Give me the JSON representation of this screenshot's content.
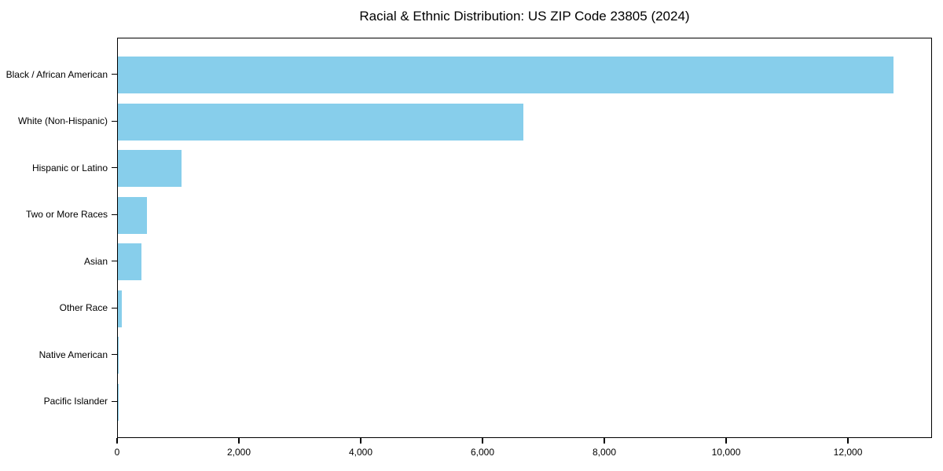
{
  "title": "Racial & Ethnic Distribution: US ZIP Code 23805 (2024)",
  "colors": {
    "bar": "#87CEEB",
    "spine": "#000000",
    "text": "#000000",
    "background": "#ffffff"
  },
  "chart_data": {
    "type": "bar",
    "orientation": "horizontal",
    "title": "Racial & Ethnic Distribution: US ZIP Code 23805 (2024)",
    "categories": [
      "Black / African American",
      "White (Non-Hispanic)",
      "Hispanic or Latino",
      "Two or More Races",
      "Asian",
      "Other Race",
      "Native American",
      "Pacific Islander"
    ],
    "values": [
      12740,
      6660,
      1045,
      480,
      390,
      60,
      15,
      5
    ],
    "bar_color": "#87CEEB",
    "xlabel": "",
    "ylabel": "",
    "xlim": [
      0,
      13380
    ],
    "xticks": [
      0,
      2000,
      4000,
      6000,
      8000,
      10000,
      12000
    ],
    "xtick_labels": [
      "0",
      "2,000",
      "4,000",
      "6,000",
      "8,000",
      "10,000",
      "12,000"
    ],
    "grid": false,
    "legend": "none",
    "background": "#ffffff"
  }
}
